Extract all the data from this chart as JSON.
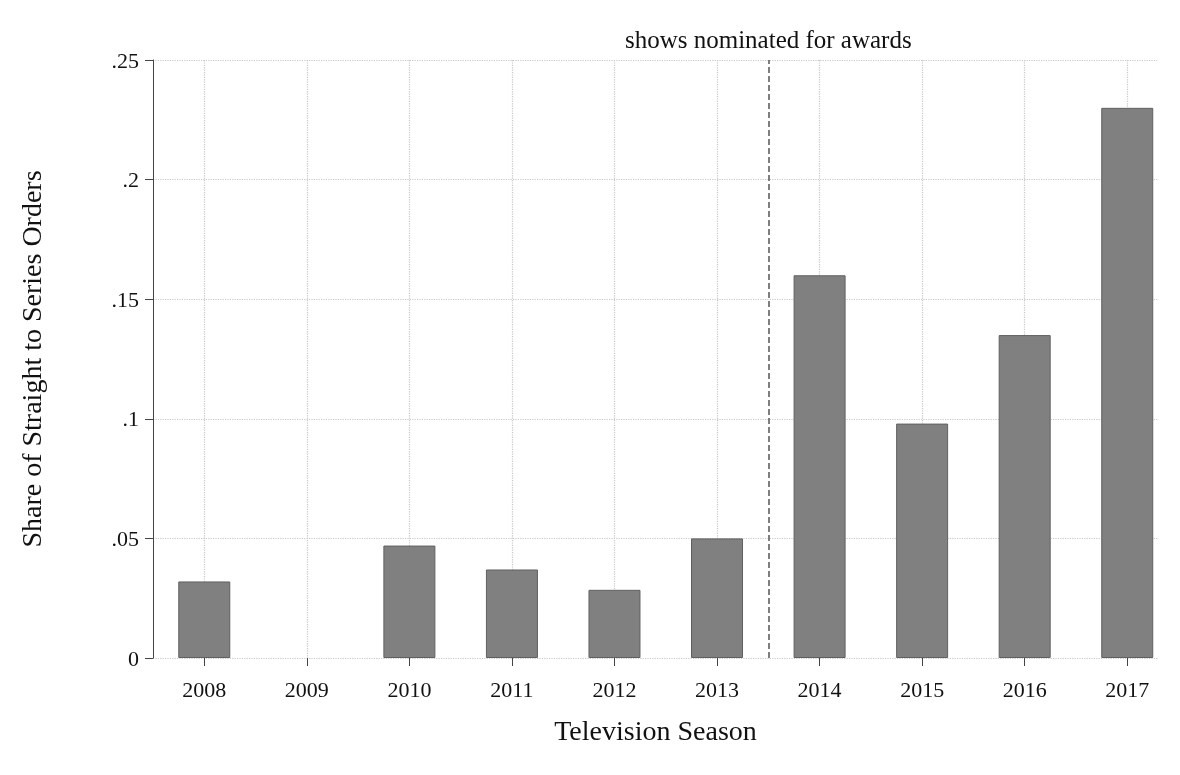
{
  "chart_data": {
    "type": "bar",
    "xlabel": "Television Season",
    "ylabel": "Share of Straight to Series Orders",
    "x": [
      2008,
      2009,
      2010,
      2011,
      2012,
      2013,
      2014,
      2015,
      2016,
      2017
    ],
    "values": [
      0.032,
      null,
      0.047,
      0.037,
      0.0285,
      0.05,
      0.16,
      0.098,
      0.135,
      0.23
    ],
    "color": "#808080",
    "xlim": [
      2007.5,
      2017.3
    ],
    "xticks": [
      2008,
      2009,
      2010,
      2011,
      2012,
      2013,
      2014,
      2015,
      2016,
      2017
    ],
    "ylim": [
      0,
      0.25
    ],
    "yticks": [
      0,
      {
        "value": 0.05,
        "label": ".05"
      },
      {
        "value": 0.1,
        "label": ".1"
      },
      {
        "value": 0.15,
        "label": ".15"
      },
      {
        "value": 0.2,
        "label": ".2"
      },
      {
        "value": 0.25,
        "label": ".25"
      }
    ],
    "ref_lines": [
      {
        "axis": "x",
        "value": 2013.5,
        "label": "shows nominated for awards",
        "line_style": "dashed",
        "color": "#555555"
      }
    ],
    "grid": true
  }
}
